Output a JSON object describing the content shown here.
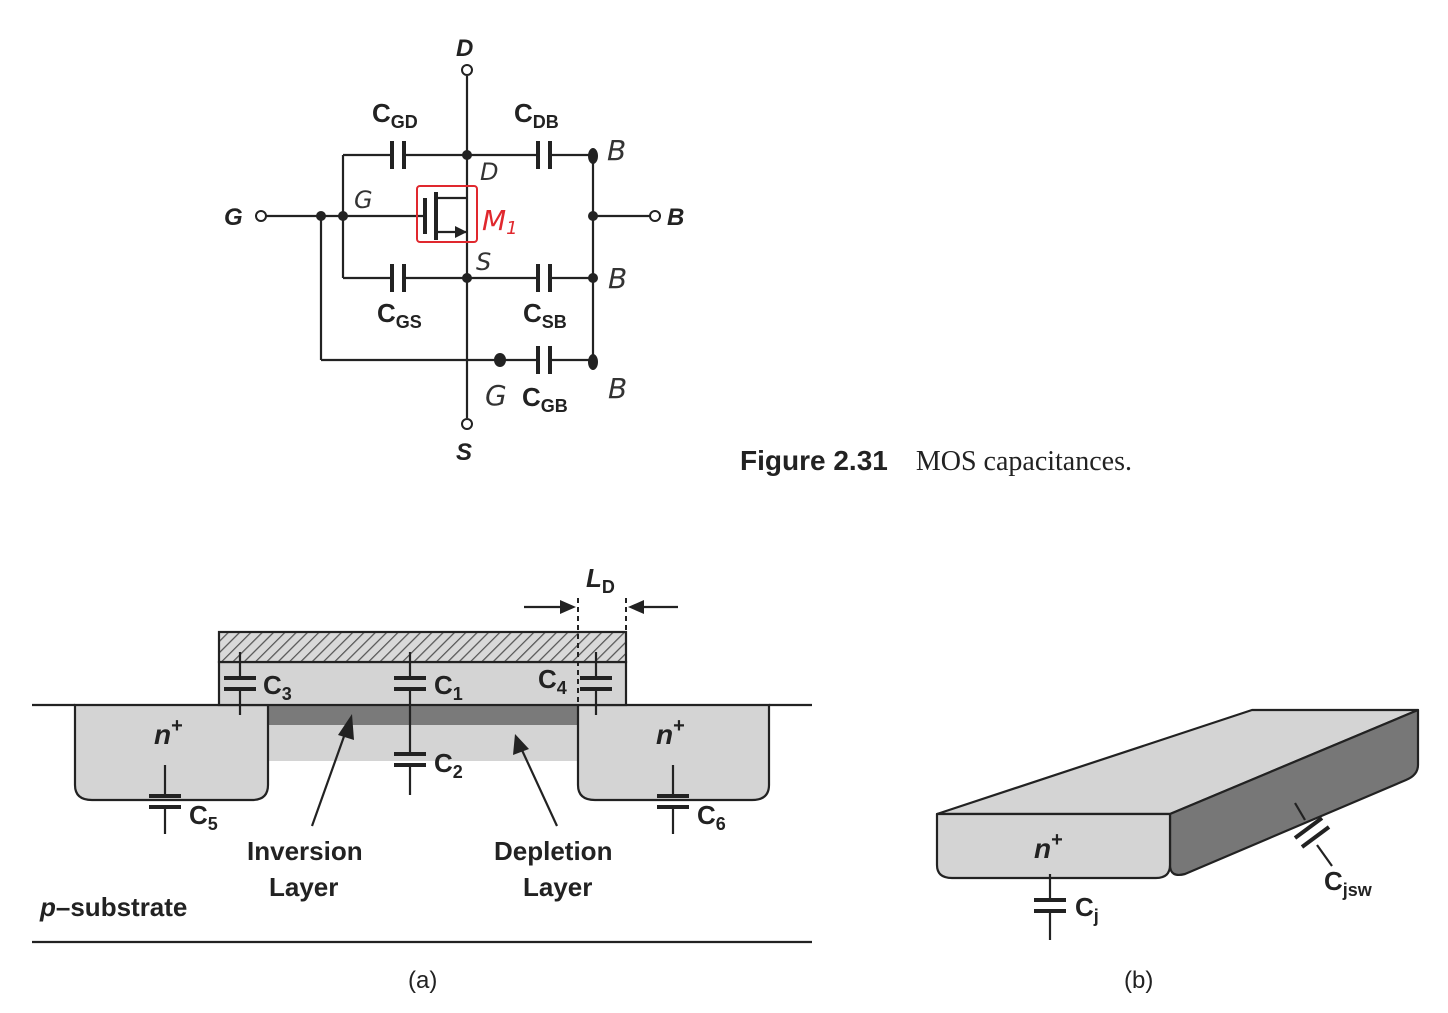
{
  "fig231": {
    "terminals": {
      "d": "D",
      "s": "S",
      "g": "G",
      "b": "B"
    },
    "caps": {
      "gd": "C",
      "gd_sub": "GD",
      "db": "C",
      "db_sub": "DB",
      "gs": "C",
      "gs_sub": "GS",
      "sb": "C",
      "sb_sub": "SB",
      "gb": "C",
      "gb_sub": "GB"
    },
    "handwritten": {
      "b1": "B",
      "b2": "B",
      "b3": "B",
      "d": "D",
      "g": "G",
      "g2": "G",
      "s": "S",
      "m1": "M",
      "m1_sub": "1"
    },
    "caption_num": "Figure 2.31",
    "caption_text": "MOS capacitances."
  },
  "fig232a": {
    "ld": "L",
    "ld_sub": "D",
    "c1": "C",
    "c1_sub": "1",
    "c2": "C",
    "c2_sub": "2",
    "c3": "C",
    "c3_sub": "3",
    "c4": "C",
    "c4_sub": "4",
    "c5": "C",
    "c5_sub": "5",
    "c6": "C",
    "c6_sub": "6",
    "n_left": "n",
    "n_right": "n",
    "plus": "+",
    "inversion1": "Inversion",
    "inversion2": "Layer",
    "depletion1": "Depletion",
    "depletion2": "Layer",
    "substrate_p": "p",
    "substrate_rest": "–substrate",
    "sublabel": "(a)"
  },
  "fig232b": {
    "n": "n",
    "plus": "+",
    "cj": "C",
    "cj_sub": "j",
    "cjsw": "C",
    "cjsw_sub": "jsw",
    "sublabel": "(b)"
  }
}
